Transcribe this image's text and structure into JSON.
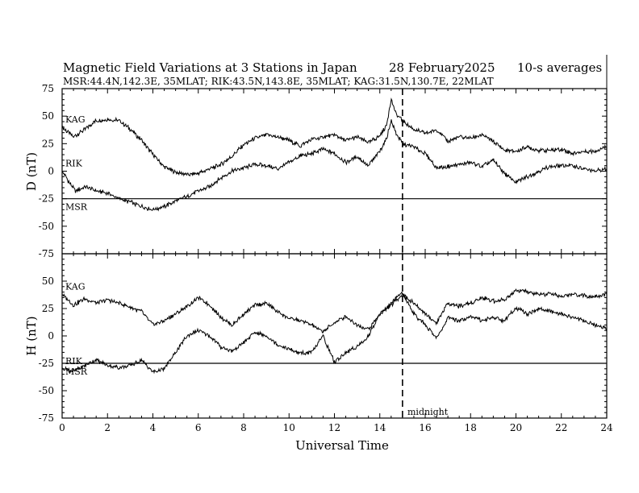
{
  "title": {
    "main": "Magnetic Field Variations at 3 Stations in Japan",
    "date": "28 February2025",
    "averaging": "10-s averages",
    "stations": "MSR:44.4N,142.3E, 35MLAT;  RIK:43.5N,143.8E, 35MLAT;  KAG:31.5N,130.7E, 22MLAT"
  },
  "xlabel": "Universal Time",
  "midnight_label": "midnight",
  "chart_data": [
    {
      "type": "line",
      "panel": "top",
      "ylabel": "D (nT)",
      "ylim": [
        -75,
        75
      ],
      "yticks": [
        75,
        50,
        25,
        0,
        -25,
        -50,
        -75
      ],
      "xlim": [
        0,
        24
      ],
      "xticks": [
        0,
        2,
        4,
        6,
        8,
        10,
        12,
        14,
        16,
        18,
        20,
        22,
        24
      ],
      "midnight_ut": 15,
      "series": [
        {
          "name": "KAG",
          "x": [
            0,
            0.5,
            1,
            1.5,
            2,
            2.5,
            3,
            3.5,
            4,
            4.5,
            5,
            5.5,
            6,
            6.5,
            7,
            7.5,
            8,
            8.5,
            9,
            9.5,
            10,
            10.5,
            11,
            11.5,
            12,
            12.5,
            13,
            13.5,
            14,
            14.3,
            14.5,
            14.7,
            15,
            15.5,
            16,
            16.5,
            17,
            17.5,
            18,
            18.5,
            19,
            19.5,
            20,
            20.5,
            21,
            21.5,
            22,
            22.5,
            23,
            23.5,
            24
          ],
          "values": [
            40,
            31,
            38,
            46,
            47,
            46,
            38,
            28,
            15,
            4,
            -1,
            -3,
            -2,
            2,
            6,
            14,
            24,
            30,
            33,
            31,
            28,
            23,
            29,
            31,
            33,
            28,
            31,
            26,
            32,
            42,
            66,
            52,
            46,
            38,
            34,
            38,
            27,
            31,
            30,
            33,
            27,
            19,
            18,
            22,
            19,
            19,
            20,
            16,
            18,
            18,
            23
          ]
        },
        {
          "name": "RIK",
          "x": [
            0,
            0.3,
            0.6,
            1,
            1.5,
            2,
            2.5,
            3,
            3.5,
            4,
            4.5,
            5,
            5.5,
            6,
            6.5,
            7,
            7.5,
            8,
            8.5,
            9,
            9.5,
            10,
            10.5,
            11,
            11.5,
            12,
            12.5,
            13,
            13.5,
            14,
            14.3,
            14.5,
            14.7,
            15,
            15.5,
            16,
            16.5,
            17,
            17.5,
            18,
            18.5,
            19,
            19.5,
            20,
            20.5,
            21,
            21.5,
            22,
            22.5,
            23,
            23.5,
            24
          ],
          "values": [
            0,
            -10,
            -18,
            -14,
            -18,
            -20,
            -25,
            -28,
            -32,
            -35,
            -32,
            -27,
            -23,
            -18,
            -14,
            -6,
            0,
            3,
            6,
            5,
            2,
            8,
            14,
            16,
            20,
            16,
            8,
            13,
            5,
            18,
            30,
            46,
            35,
            25,
            22,
            16,
            3,
            4,
            6,
            8,
            4,
            10,
            -2,
            -10,
            -5,
            0,
            4,
            5,
            5,
            2,
            0,
            2
          ]
        }
      ],
      "baselines": [
        {
          "name": "MSR",
          "value": -25
        }
      ]
    },
    {
      "type": "line",
      "panel": "bottom",
      "ylabel": "H (nT)",
      "ylim": [
        -75,
        75
      ],
      "yticks": [
        50,
        25,
        0,
        -25,
        -50,
        -75
      ],
      "xlim": [
        0,
        24
      ],
      "xticks": [
        0,
        2,
        4,
        6,
        8,
        10,
        12,
        14,
        16,
        18,
        20,
        22,
        24
      ],
      "midnight_ut": 15,
      "series": [
        {
          "name": "KAG",
          "x": [
            0,
            0.5,
            1,
            1.5,
            2,
            2.5,
            3,
            3.5,
            4,
            4.5,
            5,
            5.5,
            6,
            6.5,
            7,
            7.5,
            8,
            8.5,
            9,
            9.5,
            10,
            10.5,
            11,
            11.5,
            12,
            12.5,
            13,
            13.5,
            14,
            14.5,
            15,
            15.5,
            16,
            16.5,
            17,
            17.5,
            18,
            18.5,
            19,
            19.5,
            20,
            20.5,
            21,
            21.5,
            22,
            22.5,
            23,
            23.5,
            24
          ],
          "values": [
            38,
            28,
            34,
            30,
            33,
            30,
            26,
            22,
            10,
            14,
            20,
            27,
            35,
            28,
            17,
            10,
            20,
            28,
            30,
            22,
            16,
            14,
            10,
            4,
            12,
            18,
            10,
            6,
            20,
            28,
            38,
            30,
            20,
            12,
            30,
            27,
            30,
            35,
            32,
            33,
            42,
            40,
            38,
            38,
            36,
            38,
            37,
            36,
            38
          ]
        },
        {
          "name": "RIK",
          "x": [
            0,
            0.5,
            1,
            1.5,
            2,
            2.5,
            3,
            3.5,
            4,
            4.5,
            5,
            5.5,
            6,
            6.5,
            7,
            7.5,
            8,
            8.5,
            9,
            9.5,
            10,
            10.5,
            11,
            11.5,
            12,
            12.5,
            13,
            13.5,
            14,
            14.5,
            15,
            15.5,
            16,
            16.5,
            17,
            17.5,
            18,
            18.5,
            19,
            19.5,
            20,
            20.5,
            21,
            21.5,
            22,
            22.5,
            23,
            23.5,
            24
          ],
          "values": [
            -30,
            -32,
            -27,
            -22,
            -27,
            -29,
            -27,
            -22,
            -33,
            -30,
            -15,
            0,
            5,
            0,
            -10,
            -14,
            -6,
            3,
            0,
            -8,
            -12,
            -16,
            -15,
            0,
            -24,
            -15,
            -10,
            0,
            20,
            30,
            40,
            20,
            10,
            -2,
            16,
            14,
            18,
            14,
            17,
            14,
            26,
            20,
            25,
            22,
            20,
            17,
            14,
            10,
            7
          ]
        }
      ],
      "baselines": [
        {
          "name": "MSR",
          "value": -25
        }
      ]
    }
  ]
}
